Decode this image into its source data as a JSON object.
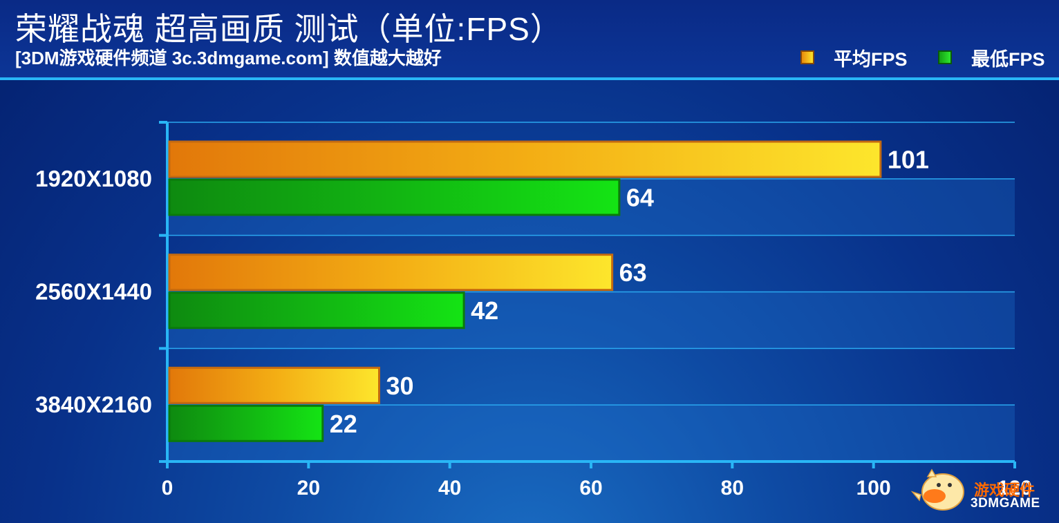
{
  "header": {
    "title": "荣耀战魂 超高画质 测试（单位:FPS）",
    "subtitle": "[3DM游戏硬件频道 3c.3dmgame.com] 数值越大越好"
  },
  "legend": [
    {
      "label": "平均FPS",
      "color": "#f5b21a"
    },
    {
      "label": "最低FPS",
      "color": "#1fc41f"
    }
  ],
  "chart_data": {
    "type": "bar",
    "orientation": "horizontal",
    "categories": [
      "1920X1080",
      "2560X1440",
      "3840X2160"
    ],
    "series": [
      {
        "name": "平均FPS",
        "values": [
          101,
          63,
          30
        ],
        "color": "#f5b21a"
      },
      {
        "name": "最低FPS",
        "values": [
          64,
          42,
          22
        ],
        "color": "#1fc41f"
      }
    ],
    "xlim": [
      0,
      120
    ],
    "x_ticks": [
      0,
      20,
      40,
      60,
      80,
      100,
      120
    ],
    "grid": true,
    "legend_position": "top-right",
    "show_data_labels": true
  },
  "watermark": {
    "text_cn": "游戏硬件",
    "text_en": "3DMGAME"
  }
}
